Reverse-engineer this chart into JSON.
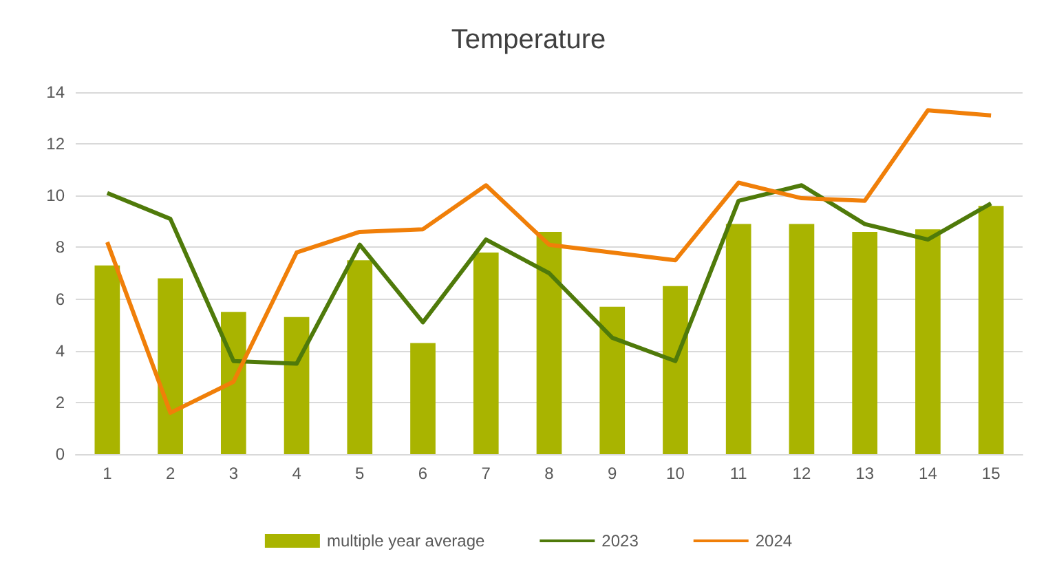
{
  "chart_data": {
    "type": "bar",
    "title": "Temperature",
    "categories": [
      "1",
      "2",
      "3",
      "4",
      "5",
      "6",
      "7",
      "8",
      "9",
      "10",
      "11",
      "12",
      "13",
      "14",
      "15"
    ],
    "series": [
      {
        "name": "multiple year average",
        "color": "#a9b400",
        "values": [
          7.3,
          6.8,
          5.5,
          5.3,
          7.5,
          4.3,
          7.8,
          8.6,
          5.7,
          6.5,
          8.9,
          8.9,
          8.6,
          8.7,
          9.6
        ]
      },
      {
        "name": "2023",
        "type": "line",
        "color": "#4f7a0a",
        "values": [
          10.1,
          9.1,
          3.6,
          3.5,
          8.1,
          5.1,
          8.3,
          7.0,
          4.5,
          3.6,
          9.8,
          10.4,
          8.9,
          8.3,
          9.7
        ]
      },
      {
        "name": "2024",
        "type": "line",
        "color": "#f07f09",
        "values": [
          8.2,
          1.6,
          2.8,
          7.8,
          8.6,
          8.7,
          10.4,
          8.1,
          7.8,
          7.5,
          10.5,
          9.9,
          9.8,
          13.3,
          13.1
        ]
      }
    ],
    "ylim": [
      0,
      14
    ],
    "yticks": [
      0,
      2,
      4,
      6,
      8,
      10,
      12,
      14
    ],
    "grid": "y",
    "legend": "bottom",
    "marker": "none",
    "line_style": "solid"
  }
}
